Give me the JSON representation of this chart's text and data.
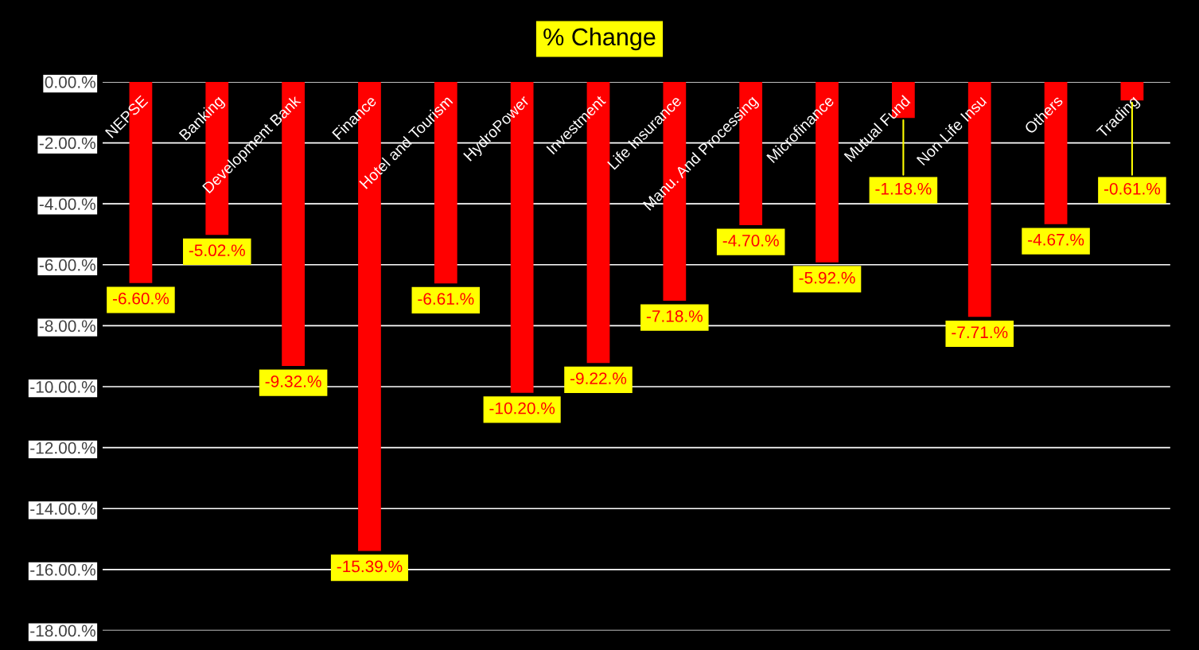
{
  "chart_data": {
    "type": "bar",
    "title": "% Change",
    "categories": [
      "NEPSE",
      "Banking",
      "Development Bank",
      "Finance",
      "Hotel and Tourism",
      "HydroPower",
      "Investment",
      "Life Insurance",
      "Manu. And Processing",
      "Microfinance",
      "Mutual Fund",
      "Non Life Insu",
      "Others",
      "Trading"
    ],
    "values": [
      -6.6,
      -5.02,
      -9.32,
      -15.39,
      -6.61,
      -10.2,
      -9.22,
      -7.18,
      -4.7,
      -5.92,
      -1.18,
      -7.71,
      -4.67,
      -0.61
    ],
    "value_labels": [
      "-6.60.%",
      "-5.02.%",
      "-9.32.%",
      "-15.39.%",
      "-6.61.%",
      "-10.20.%",
      "-9.22.%",
      "-7.18.%",
      "-4.70.%",
      "-5.92.%",
      "-1.18.%",
      "-7.71.%",
      "-4.67.%",
      "-0.61.%"
    ],
    "color": "#ff0000",
    "ylim": [
      -18,
      0
    ],
    "yticks": [
      {
        "value": 0,
        "label": "0.00.%"
      },
      {
        "value": -2,
        "label": "-2.00.%"
      },
      {
        "value": -4,
        "label": "-4.00.%"
      },
      {
        "value": -6,
        "label": "-6.00.%"
      },
      {
        "value": -8,
        "label": "-8.00.%"
      },
      {
        "value": -10,
        "label": "-10.00.%"
      },
      {
        "value": -12,
        "label": "-12.00.%"
      },
      {
        "value": -14,
        "label": "-14.00.%"
      },
      {
        "value": -16,
        "label": "-16.00.%"
      },
      {
        "value": -18,
        "label": "-18.00.%"
      }
    ],
    "grid": "y",
    "legend": false
  }
}
